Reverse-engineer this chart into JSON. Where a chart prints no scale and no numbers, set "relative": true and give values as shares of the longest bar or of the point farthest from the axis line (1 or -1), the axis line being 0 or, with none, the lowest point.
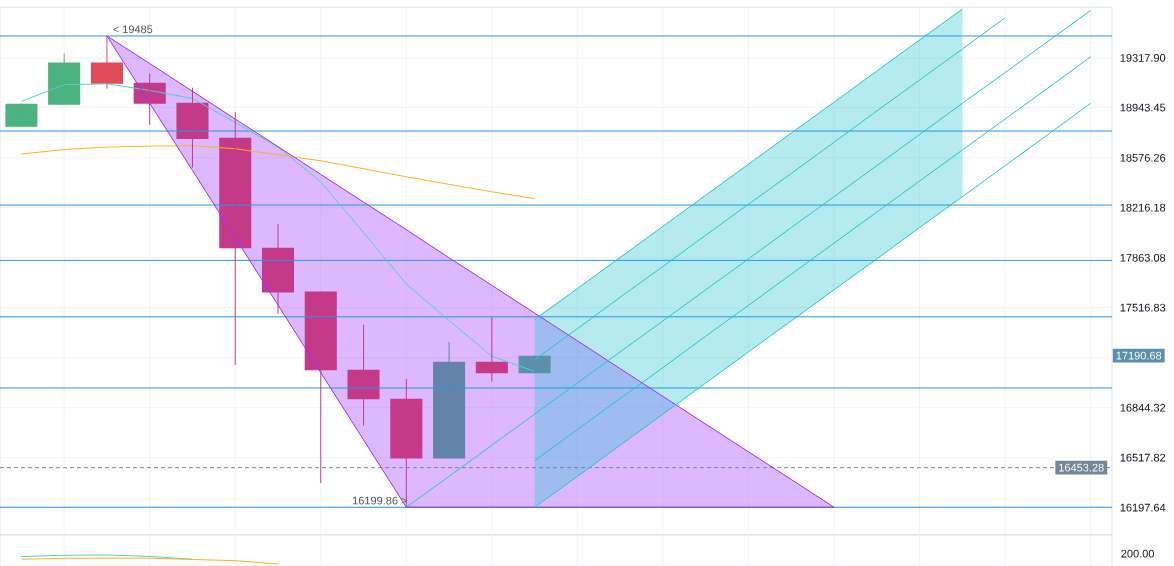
{
  "chart_data": [
    {
      "type": "candlestick",
      "categories": [
        null,
        null,
        null,
        null,
        null,
        null,
        null,
        null,
        null,
        null,
        null,
        null,
        null,
        null,
        null,
        null,
        null,
        null,
        null,
        null,
        null,
        null,
        null,
        null,
        null,
        null
      ],
      "ohlc": [
        [
          18803,
          18973,
          18803,
          18973
        ],
        [
          18966,
          19348,
          18966,
          19280
        ],
        [
          19280,
          19485,
          19085,
          19122
        ],
        [
          19130,
          19197,
          18818,
          18973
        ],
        [
          18981,
          19092,
          18504,
          18715
        ],
        [
          18722,
          18914,
          17127,
          17929
        ],
        [
          17933,
          18100,
          17475,
          17622
        ],
        [
          17627,
          17627,
          16355,
          17092
        ],
        [
          17097,
          17400,
          16728,
          16899
        ],
        [
          16903,
          17034,
          16199.86,
          16513
        ],
        [
          16513,
          17285,
          16513,
          17150
        ],
        [
          17150,
          17450,
          17018,
          17072
        ],
        [
          17072,
          17190.68,
          17072,
          17190.68
        ],
        null,
        null,
        null,
        null,
        null,
        null,
        null,
        null,
        null,
        null,
        null,
        null,
        null
      ],
      "colors": [
        "#4cb280",
        "#4cb280",
        "#e04b5a",
        "#c43a88",
        "#c43a88",
        "#c43a88",
        "#c43a88",
        "#c43a88",
        "#c43a88",
        "#c43a88",
        "#6383a8",
        "#c43a88",
        "#5b8fac",
        null,
        null,
        null,
        null,
        null,
        null,
        null,
        null,
        null,
        null,
        null,
        null,
        null
      ],
      "log": true,
      "ylim": [
        16027,
        19704
      ],
      "yticks": [
        {
          "value": 19317.9,
          "label": "19317.90"
        },
        18943.45,
        18576.26,
        18216.18,
        17863.08,
        17516.83,
        {
          "value": 17177.3,
          "label": null
        },
        16844.32,
        16517.82,
        16197.64
      ],
      "grid": true,
      "series": [
        {
          "type": "line",
          "color": "#4fd1c5",
          "values": [
            18990,
            19113,
            19122,
            19072,
            19010,
            18833,
            18653,
            18402,
            18039,
            17680,
            17428,
            17186,
            17085,
            null,
            null,
            null,
            null,
            null,
            null,
            null,
            null,
            null,
            null,
            null,
            null,
            null
          ]
        },
        {
          "type": "line",
          "color": "#ffb11b",
          "values": [
            18602,
            18637,
            18654,
            18660,
            18664,
            18642,
            18598,
            18554,
            18496,
            18438,
            18384,
            18330,
            18280,
            null,
            null,
            null,
            null,
            null,
            null,
            null,
            null,
            null,
            null,
            null,
            null,
            null
          ]
        },
        {
          "type": "line",
          "color": "#9b30ff",
          "values": [
            null,
            null,
            19485,
            19275,
            19066,
            18860,
            18657,
            18455,
            18256,
            18059,
            17863,
            17670,
            17480,
            17291,
            17104,
            16919,
            16736,
            16556,
            16377,
            16199.86,
            null,
            null,
            null,
            null,
            null,
            null
          ],
          "lower": [
            null,
            null,
            19485,
            18978,
            18484,
            18003,
            17534,
            17077,
            16633,
            16199.86,
            16199.86,
            16199.86,
            16199.86,
            16199.86,
            16199.86,
            16199.86,
            16199.86,
            16199.86,
            16199.86,
            16199.86,
            null,
            null,
            null,
            null,
            null,
            null
          ],
          "upper": [
            null,
            null,
            19485,
            19275,
            19066,
            18860,
            18657,
            18455,
            18256,
            18059,
            17863,
            17670,
            17480,
            17291,
            17104,
            16919,
            16736,
            16556,
            16377,
            16199.86,
            null,
            null,
            null,
            null,
            null,
            null
          ]
        },
        {
          "type": "line",
          "color": "#9b30ff",
          "values": [
            null,
            null,
            19485,
            18978,
            18484,
            18003,
            17534,
            17077,
            16633,
            16199.86,
            16199.86,
            16199.86,
            16199.86,
            16199.86,
            16199.86,
            16199.86,
            16199.86,
            16199.86,
            16199.86,
            16199.86,
            null,
            null,
            null,
            null,
            null,
            null
          ]
        },
        {
          "type": "line",
          "color": "#26c4d0",
          "values": [
            null,
            null,
            null,
            null,
            null,
            null,
            null,
            null,
            null,
            null,
            null,
            null,
            16199.86,
            16398,
            16599,
            16802,
            17008,
            17216,
            17426,
            17640,
            17855,
            18074,
            18295,
            18519,
            18746,
            18975
          ],
          "lower": [
            null,
            null,
            null,
            null,
            null,
            null,
            null,
            null,
            null,
            null,
            null,
            null,
            16199.86,
            16398,
            16599,
            16802,
            17008,
            17216,
            17426,
            17640,
            17855,
            18074,
            18295,
            null,
            null,
            null
          ],
          "upper": [
            null,
            null,
            null,
            null,
            null,
            null,
            null,
            null,
            null,
            null,
            null,
            null,
            17435,
            17648,
            17864,
            18083,
            18304,
            18528,
            18755,
            18984,
            19217,
            19452,
            19690,
            null,
            null,
            null
          ]
        },
        {
          "type": "line",
          "color": "#26c4d0",
          "values": [
            null,
            null,
            null,
            null,
            null,
            null,
            null,
            null,
            null,
            null,
            null,
            null,
            17435,
            17648,
            17864,
            18083,
            18304,
            18528,
            18755,
            18984,
            19217,
            19452,
            19690,
            null,
            null,
            null
          ]
        },
        {
          "type": "line",
          "color": "#26c4d0",
          "values": [
            null,
            null,
            null,
            null,
            null,
            null,
            null,
            null,
            null,
            null,
            null,
            null,
            17164,
            17374,
            17587,
            17802,
            18020,
            18240,
            18463,
            18689,
            18918,
            19150,
            19384,
            19621,
            null,
            null
          ]
        },
        {
          "type": "line",
          "color": "#26c4d0",
          "values": [
            null,
            null,
            null,
            null,
            null,
            null,
            null,
            null,
            null,
            16199.86,
            16398,
            16599,
            16802,
            17008,
            17216,
            17426,
            17640,
            17855,
            18074,
            18295,
            18519,
            18746,
            18975,
            19207,
            19442,
            19680
          ]
        },
        {
          "type": "line",
          "color": "#26c4d0",
          "values": [
            null,
            null,
            null,
            null,
            null,
            null,
            null,
            null,
            null,
            null,
            null,
            null,
            16498,
            16700,
            16904,
            17111,
            17321,
            17533,
            17747,
            17964,
            18184,
            18407,
            18632,
            18860,
            19091,
            19324
          ]
        }
      ],
      "ref_lines": [
        {
          "axis": "y",
          "value": 19485,
          "color": "#2196f3"
        },
        {
          "axis": "y",
          "value": 18770,
          "color": "#2196f3"
        },
        {
          "axis": "y",
          "value": 18234,
          "color": "#2196f3"
        },
        {
          "axis": "y",
          "value": 17844,
          "color": "#2196f3"
        },
        {
          "axis": "y",
          "value": 17455,
          "color": "#2196f3"
        },
        {
          "axis": "y",
          "value": 16975,
          "color": "#2196f3"
        },
        {
          "axis": "y",
          "value": 16199.86,
          "color": "#2196f3"
        },
        {
          "axis": "y",
          "value": 16453.28,
          "label": "16453.28",
          "color": "#758696",
          "line_style": "dashed"
        }
      ],
      "annotations": [
        {
          "text": "< 19485",
          "y": 19485
        },
        {
          "text": "16199.86 >",
          "y": 16199.86
        },
        "17190.68"
      ]
    },
    {
      "type": "line",
      "relative": true,
      "categories": [
        null,
        null,
        null,
        null,
        null,
        null,
        null,
        null,
        null,
        null,
        null,
        null,
        null,
        null,
        null,
        null,
        null,
        null,
        null,
        null,
        null,
        null,
        null,
        null,
        null,
        null
      ],
      "grid": "x",
      "series": [
        {
          "color": "#4fd1c5",
          "values": [
            0.82,
            0.97,
            1,
            0.84,
            0.53,
            null,
            null,
            null,
            null,
            null,
            null,
            null,
            null,
            null,
            null,
            null,
            null,
            null,
            null,
            null,
            null,
            null,
            null,
            null,
            null,
            null
          ]
        },
        {
          "color": "#ffb11b",
          "values": [
            0.53,
            0.63,
            0.65,
            0.65,
            0.5,
            0.37,
            0,
            null,
            null,
            null,
            null,
            null,
            null,
            null,
            null,
            null,
            null,
            null,
            null,
            null,
            null,
            null,
            null,
            null,
            null,
            null
          ]
        }
      ],
      "annotations": [
        "200.00"
      ]
    }
  ]
}
